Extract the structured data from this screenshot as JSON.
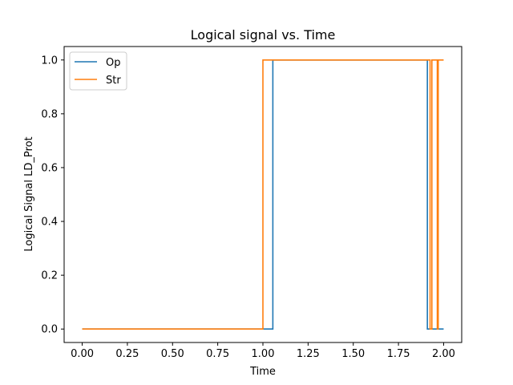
{
  "chart_data": {
    "type": "line",
    "title": "Logical signal vs. Time",
    "xlabel": "Time",
    "ylabel": "Logical Signal LD_Prot",
    "xlim": [
      -0.1,
      2.1
    ],
    "ylim": [
      -0.05,
      1.05
    ],
    "xticks": [
      0.0,
      0.25,
      0.5,
      0.75,
      1.0,
      1.25,
      1.5,
      1.75,
      2.0
    ],
    "xtick_labels": [
      "0.00",
      "0.25",
      "0.50",
      "0.75",
      "1.00",
      "1.25",
      "1.50",
      "1.75",
      "2.00"
    ],
    "yticks": [
      0.0,
      0.2,
      0.4,
      0.6,
      0.8,
      1.0
    ],
    "ytick_labels": [
      "0.0",
      "0.2",
      "0.4",
      "0.6",
      "0.8",
      "1.0"
    ],
    "grid": false,
    "legend_position": "top-left",
    "series": [
      {
        "name": "Op",
        "color": "#1f77b4",
        "x": [
          0.0,
          1.055,
          1.055,
          1.91,
          1.91,
          2.0
        ],
        "y": [
          0,
          0,
          1,
          1,
          0,
          0
        ]
      },
      {
        "name": "Str",
        "color": "#ff7f0e",
        "x": [
          0.0,
          1.0,
          1.0,
          1.925,
          1.925,
          1.935,
          1.935,
          1.965,
          1.965,
          1.97,
          1.97,
          2.0
        ],
        "y": [
          0,
          0,
          1,
          1,
          0,
          0,
          1,
          1,
          0,
          0,
          1,
          1
        ]
      }
    ]
  }
}
